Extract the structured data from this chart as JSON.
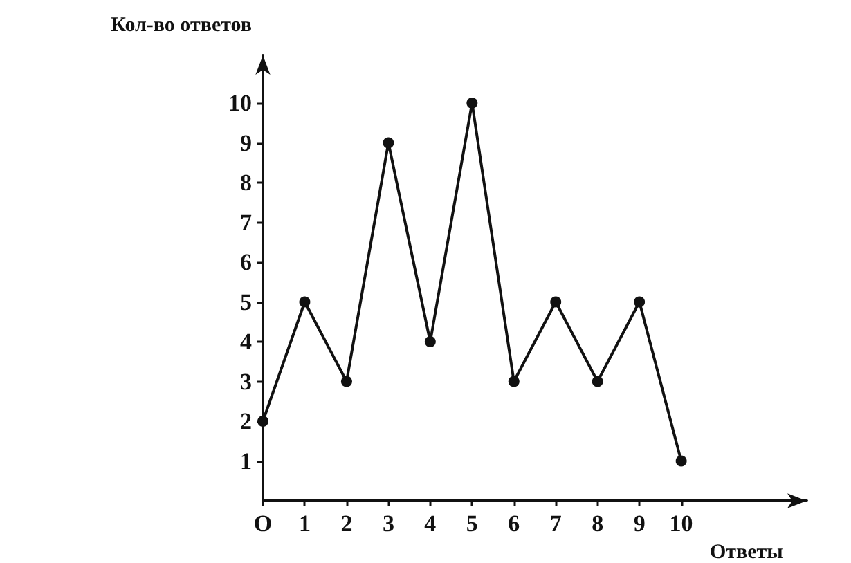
{
  "chart_data": {
    "type": "line",
    "xlabel": "Ответы",
    "ylabel": "Кол-во ответов",
    "x": [
      0,
      1,
      2,
      3,
      4,
      5,
      6,
      7,
      8,
      9,
      10
    ],
    "values": [
      2,
      5,
      3,
      9,
      4,
      10,
      3,
      5,
      3,
      5,
      1
    ],
    "color": "#111111",
    "marker": "circle",
    "line_style": "solid",
    "xlim": [
      0,
      13
    ],
    "xticks": [
      {
        "value": 0,
        "label": "O"
      },
      1,
      2,
      3,
      4,
      5,
      6,
      7,
      8,
      9,
      10
    ],
    "ylim": [
      0,
      11.2
    ],
    "yticks": [
      1,
      2,
      3,
      4,
      5,
      6,
      7,
      8,
      9,
      10
    ]
  }
}
